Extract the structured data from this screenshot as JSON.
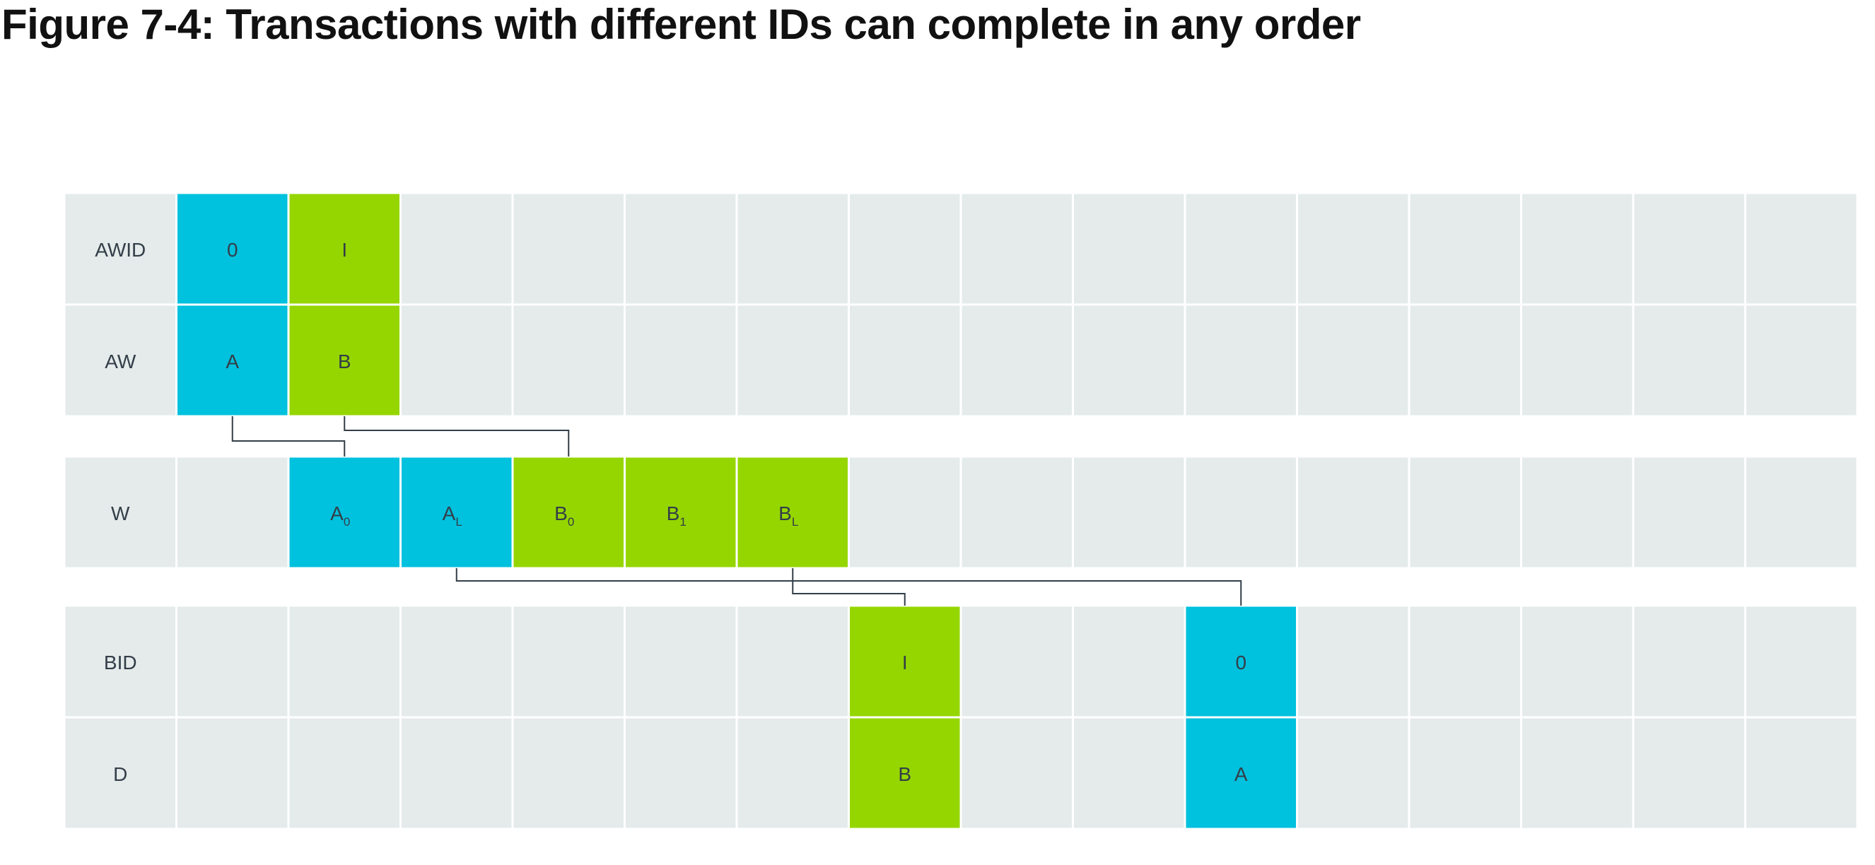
{
  "title": "Figure 7-4: Transactions with different IDs can complete in any order",
  "colors": {
    "cell_background": "#e5ebeb",
    "grid_line": "#ffffff",
    "transaction_a": "#00c1de",
    "transaction_b": "#95d600",
    "text": "#333e48",
    "connector": "#333e48"
  },
  "column_count": 16,
  "rows": [
    {
      "id": "awid",
      "label": "AWID",
      "cells": [
        {
          "col": 1,
          "txn": "a",
          "text": "0",
          "sub": ""
        },
        {
          "col": 2,
          "txn": "b",
          "text": "I",
          "sub": ""
        }
      ]
    },
    {
      "id": "aw",
      "label": "AW",
      "cells": [
        {
          "col": 1,
          "txn": "a",
          "text": "A",
          "sub": ""
        },
        {
          "col": 2,
          "txn": "b",
          "text": "B",
          "sub": ""
        }
      ]
    },
    {
      "id": "w",
      "label": "W",
      "cells": [
        {
          "col": 2,
          "txn": "a",
          "text": "A",
          "sub": "0"
        },
        {
          "col": 3,
          "txn": "a",
          "text": "A",
          "sub": "L"
        },
        {
          "col": 4,
          "txn": "b",
          "text": "B",
          "sub": "0"
        },
        {
          "col": 5,
          "txn": "b",
          "text": "B",
          "sub": "1"
        },
        {
          "col": 6,
          "txn": "b",
          "text": "B",
          "sub": "L"
        }
      ]
    },
    {
      "id": "bid",
      "label": "BID",
      "cells": [
        {
          "col": 7,
          "txn": "b",
          "text": "I",
          "sub": ""
        },
        {
          "col": 10,
          "txn": "a",
          "text": "0",
          "sub": ""
        }
      ]
    },
    {
      "id": "d",
      "label": "D",
      "cells": [
        {
          "col": 7,
          "txn": "b",
          "text": "B",
          "sub": ""
        },
        {
          "col": 10,
          "txn": "a",
          "text": "A",
          "sub": ""
        }
      ]
    }
  ],
  "connectors": [
    {
      "name": "connector-aw-a-to-w-a0",
      "from_row": "aw",
      "from_col": 1,
      "to_row": "w",
      "to_col": 2
    },
    {
      "name": "connector-aw-b-to-w-b0",
      "from_row": "aw",
      "from_col": 2,
      "to_row": "w",
      "to_col": 4
    },
    {
      "name": "connector-w-bl-to-bid-i",
      "from_row": "w",
      "from_col": 6,
      "to_row": "bid",
      "to_col": 7
    },
    {
      "name": "connector-w-al-to-bid-0",
      "from_row": "w",
      "from_col": 3,
      "to_row": "bid",
      "to_col": 10
    }
  ]
}
